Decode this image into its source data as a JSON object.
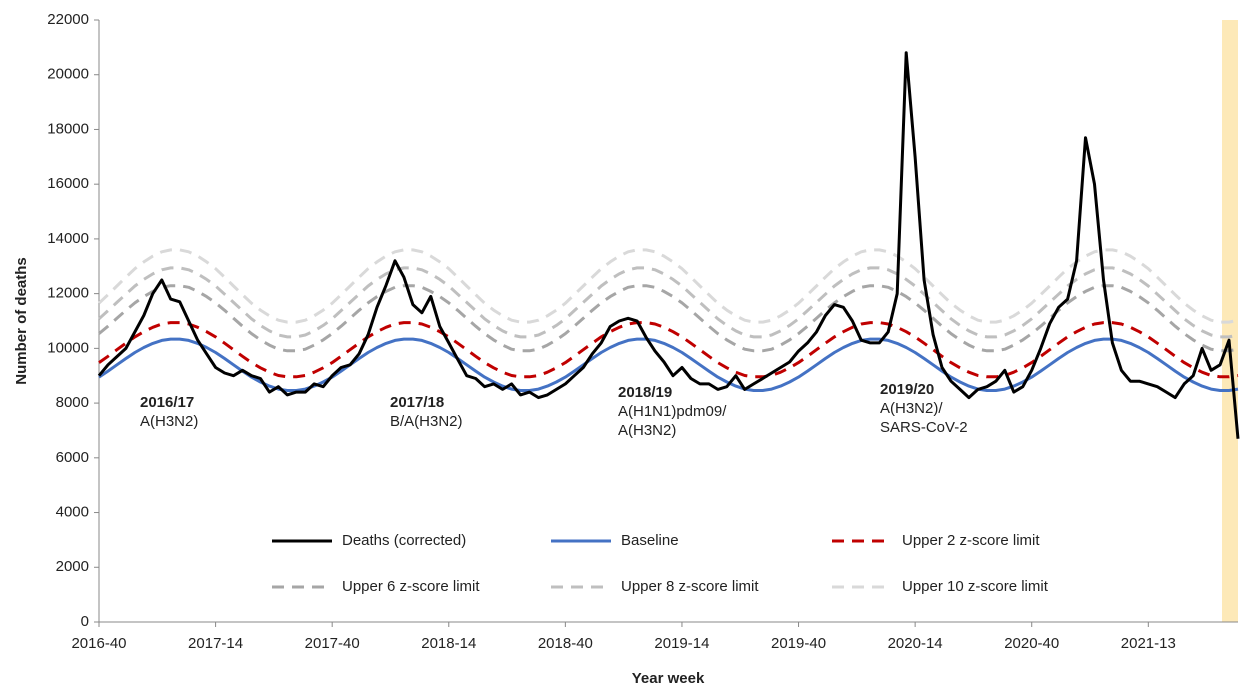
{
  "chart_data": {
    "type": "line",
    "y_label": "Number of deaths",
    "x_label": "Year week",
    "categories": [
      "2016-40",
      null,
      null,
      null,
      null,
      null,
      null,
      null,
      null,
      null,
      null,
      null,
      null,
      "2017-14",
      null,
      null,
      null,
      null,
      null,
      null,
      null,
      null,
      null,
      null,
      null,
      null,
      "2017-40",
      null,
      null,
      null,
      null,
      null,
      null,
      null,
      null,
      null,
      null,
      null,
      null,
      "2018-14",
      null,
      null,
      null,
      null,
      null,
      null,
      null,
      null,
      null,
      null,
      null,
      null,
      "2018-40",
      null,
      null,
      null,
      null,
      null,
      null,
      null,
      null,
      null,
      null,
      null,
      null,
      "2019-14",
      null,
      null,
      null,
      null,
      null,
      null,
      null,
      null,
      null,
      null,
      null,
      null,
      "2019-40",
      null,
      null,
      null,
      null,
      null,
      null,
      null,
      null,
      null,
      null,
      null,
      null,
      "2020-14",
      null,
      null,
      null,
      null,
      null,
      null,
      null,
      null,
      null,
      null,
      null,
      null,
      "2020-40",
      null,
      null,
      null,
      null,
      null,
      null,
      null,
      null,
      null,
      null,
      null,
      null,
      "2021-13",
      null,
      null,
      null,
      null,
      null,
      null,
      null,
      null,
      null,
      null
    ],
    "series": [
      {
        "name": "Deaths (corrected)",
        "color": "#000000",
        "dash": false,
        "values": [
          9000,
          9400,
          9700,
          10000,
          10600,
          11200,
          12000,
          12500,
          11800,
          11700,
          11000,
          10300,
          9800,
          9300,
          9100,
          9000,
          9200,
          9000,
          8900,
          8400,
          8600,
          8300,
          8400,
          8400,
          8700,
          8600,
          9000,
          9300,
          9400,
          9800,
          10500,
          11500,
          12300,
          13200,
          12600,
          11600,
          11300,
          11900,
          10800,
          10200,
          9600,
          9000,
          8900,
          8600,
          8700,
          8500,
          8700,
          8300,
          8400,
          8200,
          8300,
          8500,
          8700,
          9000,
          9300,
          9800,
          10200,
          10800,
          11000,
          11100,
          11000,
          10400,
          9900,
          9500,
          9000,
          9300,
          8900,
          8700,
          8700,
          8500,
          8600,
          9000,
          8500,
          8700,
          8900,
          9100,
          9300,
          9500,
          9900,
          10200,
          10600,
          11200,
          11600,
          11500,
          11000,
          10300,
          10200,
          10200,
          10600,
          12000,
          20800,
          17000,
          12500,
          10500,
          9300,
          8800,
          8500,
          8200,
          8500,
          8600,
          8800,
          9200,
          8400,
          8600,
          9200,
          10000,
          10900,
          11500,
          11800,
          13200,
          17700,
          16000,
          12500,
          10200,
          9200,
          8800,
          8800,
          8700,
          8600,
          8400,
          8200,
          8700,
          9000,
          10000,
          9200,
          9400,
          10300,
          6700
        ]
      },
      {
        "name": "Baseline",
        "color": "#4472c4",
        "dash": false,
        "values": [
          8950,
          9170,
          9400,
          9630,
          9850,
          10030,
          10180,
          10290,
          10340,
          10340,
          10290,
          10180,
          10030,
          9850,
          9630,
          9400,
          9170,
          8950,
          8770,
          8620,
          8510,
          8460,
          8460,
          8510,
          8620,
          8770,
          8950,
          9170,
          9400,
          9630,
          9850,
          10030,
          10180,
          10290,
          10340,
          10340,
          10290,
          10180,
          10030,
          9850,
          9630,
          9400,
          9170,
          8950,
          8770,
          8620,
          8510,
          8460,
          8460,
          8510,
          8620,
          8770,
          8950,
          9170,
          9400,
          9630,
          9850,
          10030,
          10180,
          10290,
          10340,
          10340,
          10290,
          10180,
          10030,
          9850,
          9630,
          9400,
          9170,
          8950,
          8770,
          8620,
          8510,
          8460,
          8460,
          8510,
          8620,
          8770,
          8950,
          9170,
          9400,
          9630,
          9850,
          10030,
          10180,
          10290,
          10340,
          10340,
          10290,
          10180,
          10030,
          9850,
          9630,
          9400,
          9170,
          8950,
          8770,
          8620,
          8510,
          8460,
          8460,
          8510,
          8620,
          8770,
          8950,
          9170,
          9400,
          9630,
          9850,
          10030,
          10180,
          10290,
          10340,
          10340,
          10290,
          10180,
          10030,
          9850,
          9630,
          9400,
          9170,
          8950,
          8770,
          8620,
          8510,
          8460,
          8460,
          8510
        ]
      },
      {
        "name": "Upper 2 z-score limit",
        "color": "#c00000",
        "dash": true,
        "values": [
          9480,
          9710,
          9950,
          10190,
          10420,
          10610,
          10770,
          10890,
          10940,
          10940,
          10890,
          10770,
          10610,
          10420,
          10190,
          9950,
          9710,
          9480,
          9290,
          9130,
          9010,
          8960,
          8960,
          9010,
          9130,
          9290,
          9480,
          9710,
          9950,
          10190,
          10420,
          10610,
          10770,
          10890,
          10940,
          10940,
          10890,
          10770,
          10610,
          10420,
          10190,
          9950,
          9710,
          9480,
          9290,
          9130,
          9010,
          8960,
          8960,
          9010,
          9130,
          9290,
          9480,
          9710,
          9950,
          10190,
          10420,
          10610,
          10770,
          10890,
          10940,
          10940,
          10890,
          10770,
          10610,
          10420,
          10190,
          9950,
          9710,
          9480,
          9290,
          9130,
          9010,
          8960,
          8960,
          9010,
          9130,
          9290,
          9480,
          9710,
          9950,
          10190,
          10420,
          10610,
          10770,
          10890,
          10940,
          10940,
          10890,
          10770,
          10610,
          10420,
          10190,
          9950,
          9710,
          9480,
          9290,
          9130,
          9010,
          8960,
          8960,
          9010,
          9130,
          9290,
          9480,
          9710,
          9950,
          10190,
          10420,
          10610,
          10770,
          10890,
          10940,
          10940,
          10890,
          10770,
          10610,
          10420,
          10190,
          9950,
          9710,
          9480,
          9290,
          9130,
          9010,
          8960,
          8960,
          9010
        ]
      },
      {
        "name": "Upper 6 z-score limit",
        "color": "#a6a6a6",
        "dash": true,
        "values": [
          10540,
          10810,
          11100,
          11390,
          11660,
          11890,
          12080,
          12230,
          12290,
          12290,
          12230,
          12080,
          11890,
          11660,
          11390,
          11100,
          10810,
          10540,
          10310,
          10120,
          9970,
          9910,
          9910,
          9970,
          10120,
          10310,
          10540,
          10810,
          11100,
          11390,
          11660,
          11890,
          12080,
          12230,
          12290,
          12290,
          12230,
          12080,
          11890,
          11660,
          11390,
          11100,
          10810,
          10540,
          10310,
          10120,
          9970,
          9910,
          9910,
          9970,
          10120,
          10310,
          10540,
          10810,
          11100,
          11390,
          11660,
          11890,
          12080,
          12230,
          12290,
          12290,
          12230,
          12080,
          11890,
          11660,
          11390,
          11100,
          10810,
          10540,
          10310,
          10120,
          9970,
          9910,
          9910,
          9970,
          10120,
          10310,
          10540,
          10810,
          11100,
          11390,
          11660,
          11890,
          12080,
          12230,
          12290,
          12290,
          12230,
          12080,
          11890,
          11660,
          11390,
          11100,
          10810,
          10540,
          10310,
          10120,
          9970,
          9910,
          9910,
          9970,
          10120,
          10310,
          10540,
          10810,
          11100,
          11390,
          11660,
          11890,
          12080,
          12230,
          12290,
          12290,
          12230,
          12080,
          11890,
          11660,
          11390,
          11100,
          10810,
          10540,
          10310,
          10120,
          9970,
          9910,
          9910,
          9970
        ]
      },
      {
        "name": "Upper 8 z-score limit",
        "color": "#bfbfbf",
        "dash": true,
        "values": [
          11080,
          11380,
          11680,
          11980,
          12280,
          12520,
          12720,
          12870,
          12940,
          12940,
          12870,
          12720,
          12520,
          12280,
          11980,
          11680,
          11380,
          11080,
          10840,
          10640,
          10490,
          10420,
          10420,
          10490,
          10640,
          10840,
          11080,
          11380,
          11680,
          11980,
          12280,
          12520,
          12720,
          12870,
          12940,
          12940,
          12870,
          12720,
          12520,
          12280,
          11980,
          11680,
          11380,
          11080,
          10840,
          10640,
          10490,
          10420,
          10420,
          10490,
          10640,
          10840,
          11080,
          11380,
          11680,
          11980,
          12280,
          12520,
          12720,
          12870,
          12940,
          12940,
          12870,
          12720,
          12520,
          12280,
          11980,
          11680,
          11380,
          11080,
          10840,
          10640,
          10490,
          10420,
          10420,
          10490,
          10640,
          10840,
          11080,
          11380,
          11680,
          11980,
          12280,
          12520,
          12720,
          12870,
          12940,
          12940,
          12870,
          12720,
          12520,
          12280,
          11980,
          11680,
          11380,
          11080,
          10840,
          10640,
          10490,
          10420,
          10420,
          10490,
          10640,
          10840,
          11080,
          11380,
          11680,
          11980,
          12280,
          12520,
          12720,
          12870,
          12940,
          12940,
          12870,
          12720,
          12520,
          12280,
          11980,
          11680,
          11380,
          11080,
          10840,
          10640,
          10490,
          10420,
          10420,
          10490
        ]
      },
      {
        "name": "Upper 10 z-score limit",
        "color": "#d9d9d9",
        "dash": true,
        "values": [
          11650,
          11960,
          12280,
          12600,
          12910,
          13160,
          13370,
          13530,
          13600,
          13600,
          13530,
          13370,
          13160,
          12910,
          12600,
          12280,
          11960,
          11650,
          11400,
          11190,
          11030,
          10960,
          10960,
          11030,
          11190,
          11400,
          11650,
          11960,
          12280,
          12600,
          12910,
          13160,
          13370,
          13530,
          13600,
          13600,
          13530,
          13370,
          13160,
          12910,
          12600,
          12280,
          11960,
          11650,
          11400,
          11190,
          11030,
          10960,
          10960,
          11030,
          11190,
          11400,
          11650,
          11960,
          12280,
          12600,
          12910,
          13160,
          13370,
          13530,
          13600,
          13600,
          13530,
          13370,
          13160,
          12910,
          12600,
          12280,
          11960,
          11650,
          11400,
          11190,
          11030,
          10960,
          10960,
          11030,
          11190,
          11400,
          11650,
          11960,
          12280,
          12600,
          12910,
          13160,
          13370,
          13530,
          13600,
          13600,
          13530,
          13370,
          13160,
          12910,
          12600,
          12280,
          11960,
          11650,
          11400,
          11190,
          11030,
          10960,
          10960,
          11030,
          11190,
          11400,
          11650,
          11960,
          12280,
          12600,
          12910,
          13160,
          13370,
          13530,
          13600,
          13600,
          13530,
          13370,
          13160,
          12910,
          12600,
          12280,
          11960,
          11650,
          11400,
          11190,
          11030,
          10960,
          10960,
          11030
        ]
      }
    ],
    "ylim": [
      0,
      22000
    ],
    "yticks": [
      0,
      2000,
      4000,
      6000,
      8000,
      10000,
      12000,
      14000,
      16000,
      18000,
      20000,
      22000
    ],
    "grid": false,
    "annotations": [
      {
        "title": "2016/17",
        "lines": [
          "A(H3N2)"
        ]
      },
      {
        "title": "2017/18",
        "lines": [
          "B/A(H3N2)"
        ]
      },
      {
        "title": "2018/19",
        "lines": [
          "A(H1N1)pdm09/",
          "A(H3N2)"
        ]
      },
      {
        "title": "2019/20",
        "lines": [
          "A(H3N2)/",
          "SARS-CoV-2"
        ]
      }
    ]
  }
}
